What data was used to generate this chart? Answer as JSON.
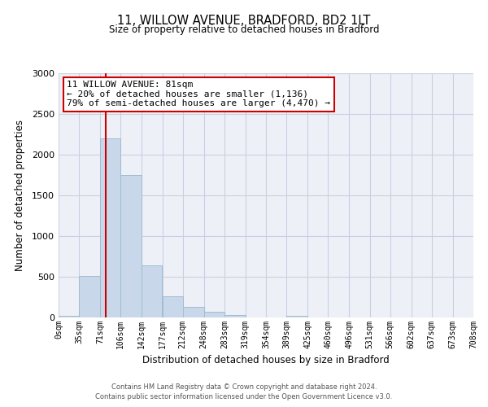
{
  "title": "11, WILLOW AVENUE, BRADFORD, BD2 1LT",
  "subtitle": "Size of property relative to detached houses in Bradford",
  "xlabel": "Distribution of detached houses by size in Bradford",
  "ylabel": "Number of detached properties",
  "bin_edges": [
    0,
    35,
    71,
    106,
    142,
    177,
    212,
    248,
    283,
    319,
    354,
    389,
    425,
    460,
    496,
    531,
    566,
    602,
    637,
    673,
    708
  ],
  "bar_heights": [
    25,
    510,
    2200,
    1750,
    640,
    260,
    130,
    70,
    30,
    5,
    0,
    20,
    5,
    0,
    0,
    0,
    0,
    0,
    0,
    0
  ],
  "bar_color": "#c8d8ea",
  "bar_edgecolor": "#a0bcd0",
  "ylim": [
    0,
    3000
  ],
  "yticks": [
    0,
    500,
    1000,
    1500,
    2000,
    2500,
    3000
  ],
  "x_tick_labels": [
    "0sqm",
    "35sqm",
    "71sqm",
    "106sqm",
    "142sqm",
    "177sqm",
    "212sqm",
    "248sqm",
    "283sqm",
    "319sqm",
    "354sqm",
    "389sqm",
    "425sqm",
    "460sqm",
    "496sqm",
    "531sqm",
    "566sqm",
    "602sqm",
    "637sqm",
    "673sqm",
    "708sqm"
  ],
  "property_line_x": 81,
  "property_line_color": "#cc0000",
  "annotation_title": "11 WILLOW AVENUE: 81sqm",
  "annotation_line1": "← 20% of detached houses are smaller (1,136)",
  "annotation_line2": "79% of semi-detached houses are larger (4,470) →",
  "annotation_border_color": "#cc0000",
  "footnote1": "Contains HM Land Registry data © Crown copyright and database right 2024.",
  "footnote2": "Contains public sector information licensed under the Open Government Licence v3.0.",
  "bg_color": "#eef0f8",
  "grid_color": "#c8d0e0"
}
